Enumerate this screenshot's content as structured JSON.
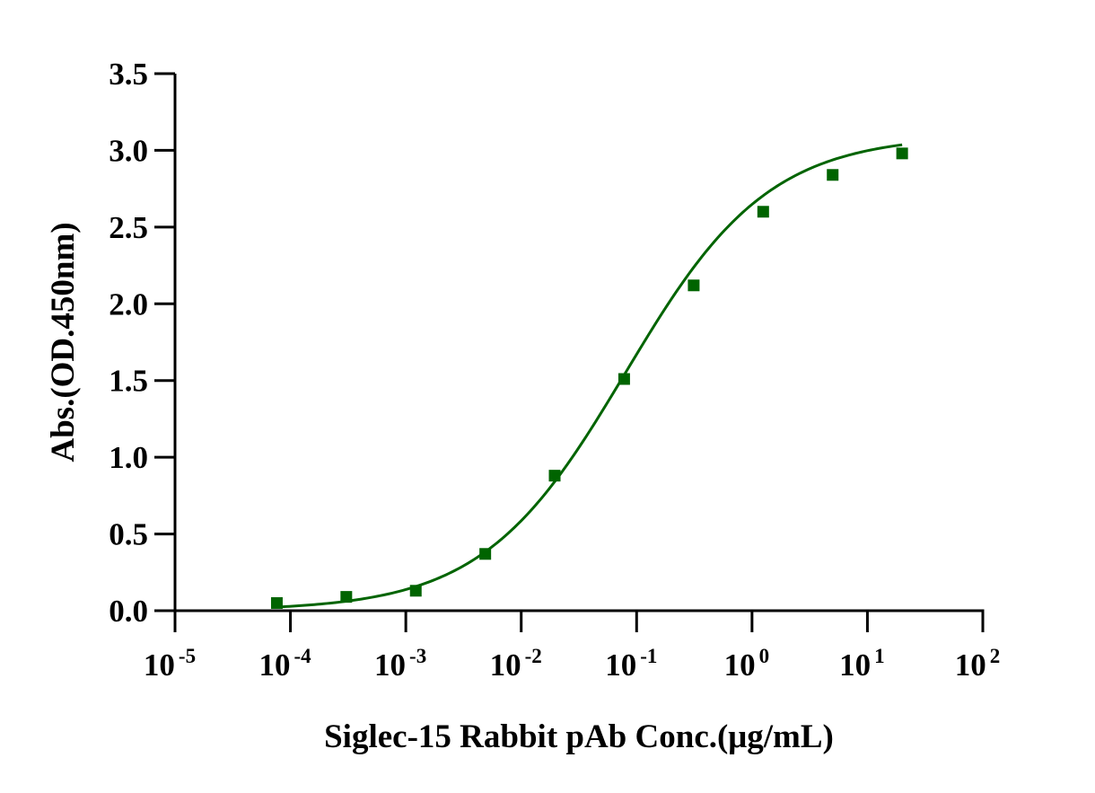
{
  "chart_data": {
    "type": "scatter",
    "title": "",
    "xlabel": "Siglec-15 Rabbit pAb Conc.(μg/mL)",
    "ylabel": "Abs.(OD.450nm)",
    "xscale": "log10",
    "xlim": [
      1e-05,
      100
    ],
    "ylim": [
      0,
      3.5
    ],
    "x_ticks": [
      {
        "base": "10",
        "exp": "-5",
        "value": -5
      },
      {
        "base": "10",
        "exp": "-4",
        "value": -4
      },
      {
        "base": "10",
        "exp": "-3",
        "value": -3
      },
      {
        "base": "10",
        "exp": "-2",
        "value": -2
      },
      {
        "base": "10",
        "exp": "-1",
        "value": -1
      },
      {
        "base": "10",
        "exp": "0",
        "value": 0
      },
      {
        "base": "10",
        "exp": "1",
        "value": 1
      },
      {
        "base": "10",
        "exp": "2",
        "value": 2
      }
    ],
    "y_ticks": [
      "0.0",
      "0.5",
      "1.0",
      "1.5",
      "2.0",
      "2.5",
      "3.0",
      "3.5"
    ],
    "grid": false,
    "series": [
      {
        "name": "Siglec-15 Rabbit pAb",
        "color": "#006400",
        "marker": "square",
        "x": [
          7.63e-05,
          0.000305,
          0.00122,
          0.00488,
          0.0195,
          0.078,
          0.3125,
          1.25,
          5,
          20
        ],
        "y": [
          0.05,
          0.09,
          0.13,
          0.37,
          0.88,
          1.51,
          2.12,
          2.6,
          2.84,
          2.98
        ],
        "fit": {
          "model": "4PL",
          "bottom": 0.0,
          "top": 3.1,
          "ec50": 0.08,
          "hill": 0.7
        }
      }
    ]
  }
}
